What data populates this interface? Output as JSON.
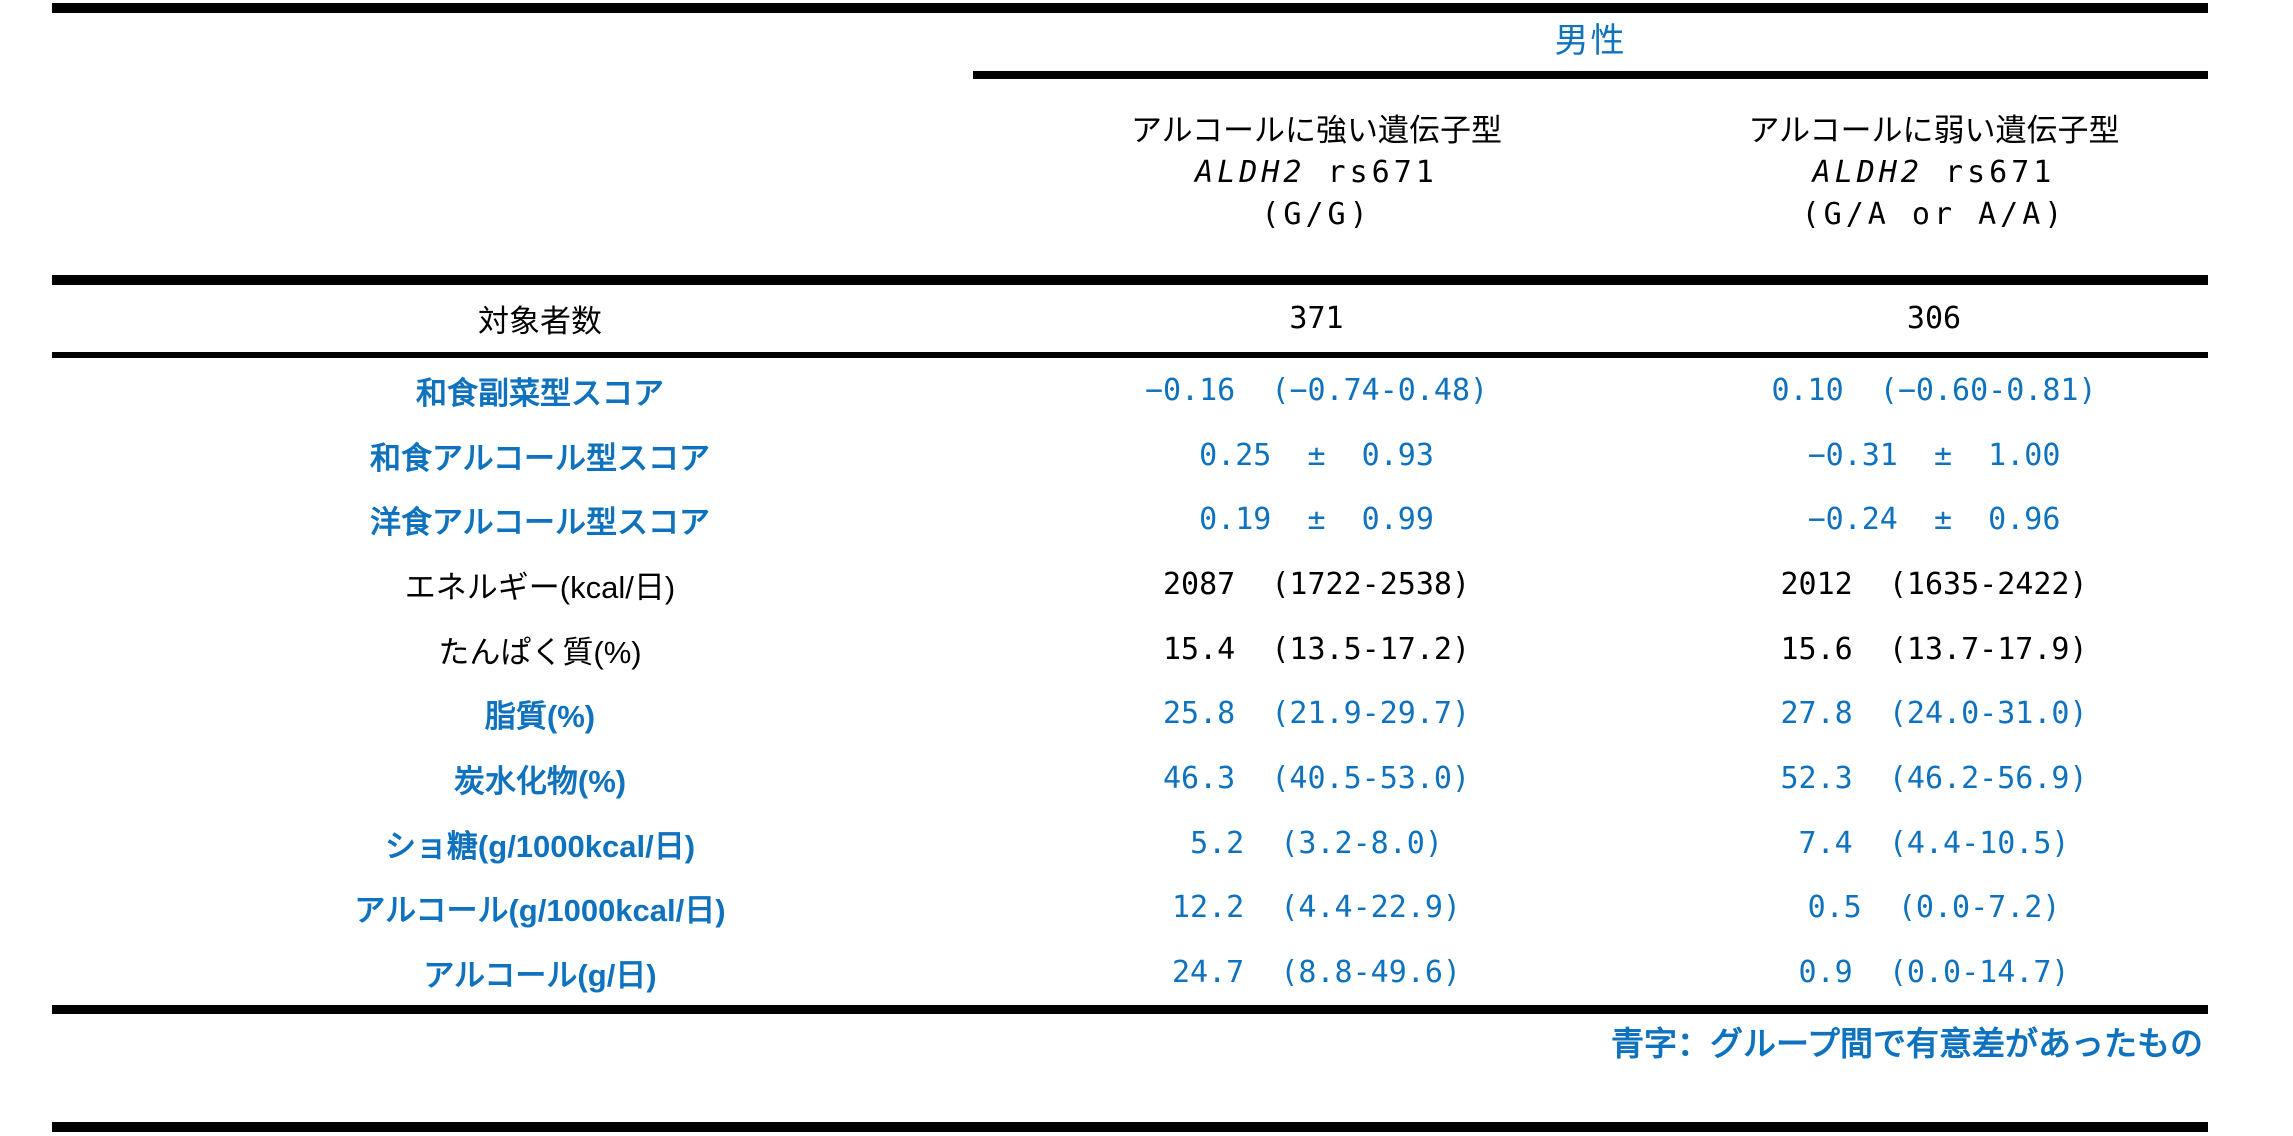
{
  "table": {
    "gender_header": "男性",
    "columns": [
      {
        "title": "アルコールに強い遺伝子型",
        "gene": "ALDH2",
        "snp": " rs671",
        "genotype": "(G/G)"
      },
      {
        "title": "アルコールに弱い遺伝子型",
        "gene": "ALDH2",
        "snp": " rs671",
        "genotype": "(G/A or A/A)"
      }
    ],
    "count_row": {
      "label": "対象者数",
      "values": [
        "371",
        "306"
      ]
    },
    "rows": [
      {
        "label": "和食副菜型スコア",
        "significant": true,
        "values": [
          "−0.16  (−0.74-0.48)",
          "0.10  (−0.60-0.81)"
        ]
      },
      {
        "label": "和食アルコール型スコア",
        "significant": true,
        "values": [
          "0.25  ±  0.93",
          "−0.31  ±  1.00"
        ]
      },
      {
        "label": "洋食アルコール型スコア",
        "significant": true,
        "values": [
          "0.19  ±  0.99",
          "−0.24  ±  0.96"
        ]
      },
      {
        "label": "エネルギー(kcal/日)",
        "significant": false,
        "values": [
          "2087  (1722-2538)",
          "2012  (1635-2422)"
        ]
      },
      {
        "label": "たんぱく質(%)",
        "significant": false,
        "values": [
          "15.4  (13.5-17.2)",
          "15.6  (13.7-17.9)"
        ]
      },
      {
        "label": "脂質(%)",
        "significant": true,
        "values": [
          "25.8  (21.9-29.7)",
          "27.8  (24.0-31.0)"
        ]
      },
      {
        "label": "炭水化物(%)",
        "significant": true,
        "values": [
          "46.3  (40.5-53.0)",
          "52.3  (46.2-56.9)"
        ]
      },
      {
        "label": "ショ糖(g/1000kcal/日)",
        "significant": true,
        "values": [
          "5.2  (3.2-8.0)",
          "7.4  (4.4-10.5)"
        ]
      },
      {
        "label": "アルコール(g/1000kcal/日)",
        "significant": true,
        "values": [
          "12.2  (4.4-22.9)",
          "0.5  (0.0-7.2)"
        ]
      },
      {
        "label": "アルコール(g/日)",
        "significant": true,
        "values": [
          "24.7  (8.8-49.6)",
          "0.9  (0.0-14.7)"
        ]
      }
    ],
    "footnote": "青字：グループ間で有意差があったもの"
  },
  "colors": {
    "significant_blue": "#0F72BE",
    "text": "#000000",
    "rule": "#000000",
    "background": "#FFFFFF"
  }
}
